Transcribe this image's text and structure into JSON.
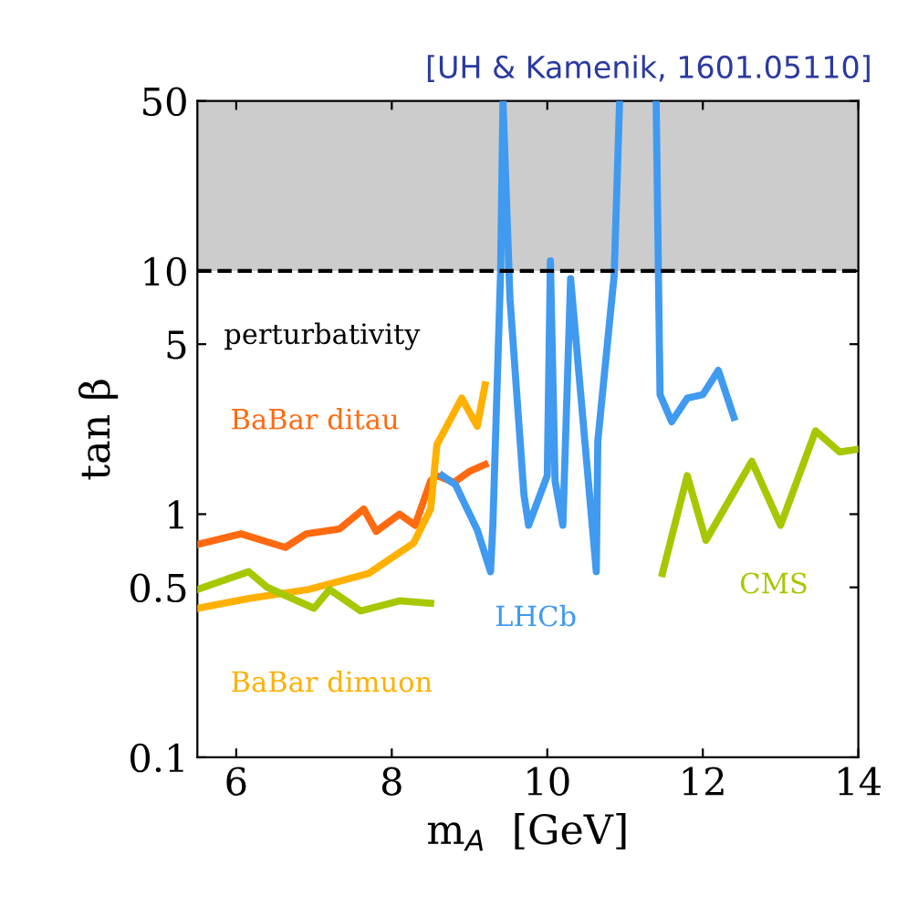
{
  "chart_data": {
    "type": "line",
    "xlabel": "m$_{A}$  [GeV]",
    "ylabel": "tan β",
    "annotations": [
      "[UH & Kamenik, 1601.05110]"
    ],
    "xlim": [
      5.5,
      14
    ],
    "xticks": [
      6,
      8,
      10,
      12,
      14
    ],
    "ylim": [
      0.1,
      50
    ],
    "yticks": [
      0.1,
      0.5,
      1,
      5,
      10,
      50
    ],
    "log": "y",
    "grid": false,
    "legend": false,
    "line_style": "solid",
    "marker": "none",
    "bands": [
      {
        "axis": "y",
        "from": 10,
        "to": 50,
        "label": "perturbativity",
        "color": "#999999"
      }
    ],
    "ref_lines": [
      {
        "axis": "y",
        "value": 10,
        "line_style": "dashed",
        "color": "#000000"
      }
    ],
    "series": [
      {
        "name": "BaBar ditau",
        "color": "#ff6a10",
        "x": [
          5.5,
          6.06,
          6.63,
          6.9,
          7.33,
          7.64,
          7.8,
          8.1,
          8.3,
          8.5,
          8.58,
          8.8,
          9.0,
          9.2
        ],
        "values": [
          0.75,
          0.83,
          0.73,
          0.83,
          0.87,
          1.05,
          0.85,
          1.0,
          0.9,
          1.37,
          1.44,
          1.35,
          1.5,
          1.6
        ]
      },
      {
        "name": "BaBar dimuon",
        "color": "#ffb000",
        "x": [
          5.5,
          6.16,
          6.93,
          7.7,
          8.28,
          8.5,
          8.58,
          8.9,
          9.1,
          9.2
        ],
        "values": [
          0.41,
          0.45,
          0.49,
          0.57,
          0.76,
          1.05,
          1.93,
          3.0,
          2.3,
          3.4
        ]
      },
      {
        "name": "LHCb",
        "color": "#3f9af0",
        "x": [
          8.65,
          8.82,
          9.1,
          9.27,
          9.3,
          9.4,
          9.43,
          9.52,
          9.7,
          9.76,
          10.0,
          10.04,
          10.1,
          10.2,
          10.3,
          10.63,
          10.65,
          10.86,
          10.93,
          11.2,
          11.4,
          11.45,
          11.6,
          11.8,
          12.0,
          12.2,
          12.4
        ],
        "values": [
          1.44,
          1.32,
          0.86,
          0.58,
          0.9,
          10,
          50,
          7.7,
          1.2,
          0.9,
          1.44,
          11,
          1.37,
          0.9,
          9.3,
          0.58,
          2.0,
          9.6,
          50,
          null,
          50,
          3.1,
          2.4,
          3.0,
          3.1,
          3.9,
          2.5
        ]
      },
      {
        "name": "CMS",
        "color": "#a5c800",
        "x": [
          5.5,
          6.16,
          6.4,
          7.0,
          7.2,
          7.6,
          8.1,
          8.5,
          10.0,
          11.48,
          11.8,
          12.04,
          12.63,
          13.0,
          13.45,
          13.76,
          14.0
        ],
        "values": [
          0.49,
          0.58,
          0.5,
          0.41,
          0.49,
          0.4,
          0.44,
          0.43,
          null,
          0.57,
          1.44,
          0.78,
          1.65,
          0.9,
          2.2,
          1.8,
          1.85
        ]
      }
    ]
  }
}
